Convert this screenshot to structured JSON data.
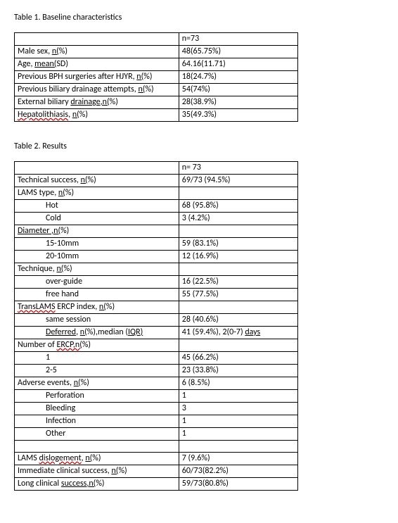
{
  "table1": {
    "title": "Table 1. Baseline characteristics",
    "header_value": "n=73",
    "rows": [
      {
        "label_pre": "Male sex, ",
        "label_u": "n(",
        "label_post": "%)",
        "value": "48(65.75%)"
      },
      {
        "label_pre": "Age, ",
        "label_u": "mean(",
        "label_post": "SD)",
        "value": "64.16(11.71)"
      },
      {
        "label_pre": "Previous BPH surgeries after HJYR, ",
        "label_u": "n(",
        "label_post": "%)",
        "value": "18(24.7%)"
      },
      {
        "label_pre": "Previous biliary drainage attempts, ",
        "label_u": "n(",
        "label_post": "%)",
        "value": "54(74%)"
      },
      {
        "label_pre": "External biliary ",
        "label_u": "drainage,n(",
        "label_post": "%)",
        "value": "28(38.9%)"
      },
      {
        "label_spell": "Hepatolithiasis",
        "label_pre2": ", ",
        "label_u": "n(",
        "label_post": "%)",
        "value": "35(49.3%)"
      }
    ]
  },
  "table2": {
    "title": "Table 2. Results",
    "header_value": "n= 73",
    "rows": [
      {
        "type": "u",
        "pre": "Technical success, ",
        "u": "n(",
        "post": "%)",
        "value": "69/73 (94.5%)"
      },
      {
        "type": "u",
        "pre": "LAMS type, ",
        "u": "n(",
        "post": "%)",
        "value": ""
      },
      {
        "type": "ind",
        "label": "Hot",
        "value": "68 (95.8%)"
      },
      {
        "type": "ind",
        "label": "Cold",
        "value": "3 (4.2%)"
      },
      {
        "type": "diam",
        "u1": "Diameter ,",
        "u2": "n(",
        "post": "%)",
        "value": ""
      },
      {
        "type": "ind",
        "label": "15-10mm",
        "value": "59 (83.1%)"
      },
      {
        "type": "ind",
        "label": "20-10mm",
        "value": "12 (16.9%)"
      },
      {
        "type": "u",
        "pre": "Technique, ",
        "u": "n(",
        "post": "%)",
        "value": ""
      },
      {
        "type": "ind",
        "label": "over-guide",
        "value": "16 (22.5%)"
      },
      {
        "type": "ind",
        "label": "free hand",
        "value": "55 (77.5%)"
      },
      {
        "type": "trans",
        "spell": "TransLAMS",
        "pre2": " ERCP index, ",
        "u": "n(",
        "post": "%)",
        "value": ""
      },
      {
        "type": "ind",
        "label": "same session",
        "value": "28 (40.6%)"
      },
      {
        "type": "defer",
        "u1": "Deferred",
        "mid": ", ",
        "u2": "n(",
        "mid2": "%),median (",
        "u3": "IQR)",
        "value_pre": "41 (59.4%), 2(0-7) ",
        "value_u": "days"
      },
      {
        "type": "ercp",
        "pre": "Number of ",
        "spell": "ERCP,n",
        "u": "(",
        "post": "%)",
        "value": ""
      },
      {
        "type": "ind",
        "label": "1",
        "value": "45 (66.2%)"
      },
      {
        "type": "ind",
        "label": "2-5",
        "value": "23 (33.8%)"
      },
      {
        "type": "u",
        "pre": "Adverse events, ",
        "u": "n(",
        "post": "%)",
        "value": "6 (8.5%)"
      },
      {
        "type": "ind",
        "label": "Perforation",
        "value": "1"
      },
      {
        "type": "ind",
        "label": "Bleeding",
        "value": "3"
      },
      {
        "type": "ind",
        "label": "Infection",
        "value": "1"
      },
      {
        "type": "ind",
        "label": "Other",
        "value": "1"
      },
      {
        "type": "blank"
      },
      {
        "type": "dis",
        "pre": "LAMS ",
        "spell": "dislogement",
        "pre2": ", ",
        "u": "n(",
        "post": "%)",
        "value": "7 (9.6%)"
      },
      {
        "type": "u",
        "pre": "Immediate clinical success, ",
        "u": "n(",
        "post": "%)",
        "value": "60/73(82.2%)"
      },
      {
        "type": "long",
        "pre": "Long clinical ",
        "u": "success,n(",
        "post": "%)",
        "value": "59/73(80.8%)"
      }
    ]
  }
}
